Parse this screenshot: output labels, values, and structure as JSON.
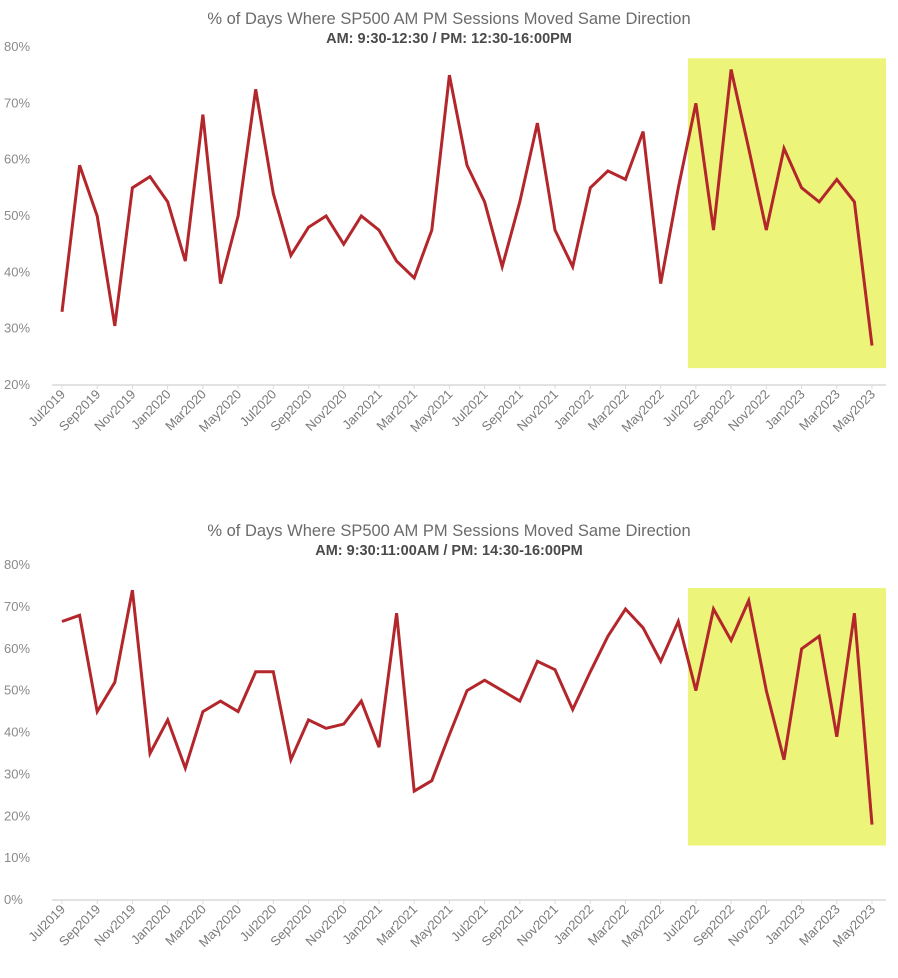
{
  "colors": {
    "line": "#b3262b",
    "highlight": "#ecf57a",
    "axis": "#d9d9d9"
  },
  "chart_data": [
    {
      "type": "line",
      "title": "% of Days Where SP500 AM PM Sessions Moved Same Direction",
      "subtitle": "AM: 9:30-12:30 / PM: 12:30-16:00PM",
      "xlabel": "",
      "ylabel": "",
      "ylim": [
        20,
        80
      ],
      "yticks": [
        20,
        30,
        40,
        50,
        60,
        70,
        80
      ],
      "ytick_labels": [
        "20%",
        "30%",
        "40%",
        "50%",
        "60%",
        "70%",
        "80%"
      ],
      "grid": false,
      "x": [
        "Jul2019",
        "Aug2019",
        "Sep2019",
        "Oct2019",
        "Nov2019",
        "Dec2019",
        "Jan2020",
        "Feb2020",
        "Mar2020",
        "Apr2020",
        "May2020",
        "Jun2020",
        "Jul2020",
        "Aug2020",
        "Sep2020",
        "Oct2020",
        "Nov2020",
        "Dec2020",
        "Jan2021",
        "Feb2021",
        "Mar2021",
        "Apr2021",
        "May2021",
        "Jun2021",
        "Jul2021",
        "Aug2021",
        "Sep2021",
        "Oct2021",
        "Nov2021",
        "Dec2021",
        "Jan2022",
        "Feb2022",
        "Mar2022",
        "Apr2022",
        "May2022",
        "Jun2022",
        "Jul2022",
        "Aug2022",
        "Sep2022",
        "Oct2022",
        "Nov2022",
        "Dec2022",
        "Jan2023",
        "Feb2023",
        "Mar2023",
        "Apr2023",
        "May2023"
      ],
      "xtick_labels": [
        "Jul2019",
        "Sep2019",
        "Nov2019",
        "Jan2020",
        "Mar2020",
        "May2020",
        "Jul2020",
        "Sep2020",
        "Nov2020",
        "Jan2021",
        "Mar2021",
        "May2021",
        "Jul2021",
        "Sep2021",
        "Nov2021",
        "Jan2022",
        "Mar2022",
        "May2022",
        "Jul2022",
        "Sep2022",
        "Nov2022",
        "Jan2023",
        "Mar2023",
        "May2023"
      ],
      "series": [
        {
          "name": "% same direction",
          "values": [
            33,
            59,
            50,
            30.5,
            55,
            57,
            52.5,
            42,
            68,
            38,
            50,
            72.5,
            54,
            43,
            48,
            50,
            45,
            50,
            47.5,
            42,
            39,
            47.5,
            75,
            59,
            52.5,
            41,
            52.5,
            66.5,
            47.5,
            41,
            55,
            58,
            56.5,
            65,
            38,
            55,
            70,
            47.5,
            76,
            62,
            47.5,
            62,
            55,
            52.5,
            56.5,
            52.5,
            27
          ]
        }
      ],
      "highlight": {
        "from": "Jul2022",
        "to": "May2023",
        "ymin": 23,
        "ymax": 78
      }
    },
    {
      "type": "line",
      "title": "% of Days Where SP500 AM PM Sessions Moved Same Direction",
      "subtitle": "AM: 9:30:11:00AM / PM: 14:30-16:00PM",
      "xlabel": "",
      "ylabel": "",
      "ylim": [
        0,
        80
      ],
      "yticks": [
        0,
        10,
        20,
        30,
        40,
        50,
        60,
        70,
        80
      ],
      "ytick_labels": [
        "0%",
        "10%",
        "20%",
        "30%",
        "40%",
        "50%",
        "60%",
        "70%",
        "80%"
      ],
      "grid": false,
      "x": [
        "Jul2019",
        "Aug2019",
        "Sep2019",
        "Oct2019",
        "Nov2019",
        "Dec2019",
        "Jan2020",
        "Feb2020",
        "Mar2020",
        "Apr2020",
        "May2020",
        "Jun2020",
        "Jul2020",
        "Aug2020",
        "Sep2020",
        "Oct2020",
        "Nov2020",
        "Dec2020",
        "Jan2021",
        "Feb2021",
        "Mar2021",
        "Apr2021",
        "May2021",
        "Jun2021",
        "Jul2021",
        "Aug2021",
        "Sep2021",
        "Oct2021",
        "Nov2021",
        "Dec2021",
        "Jan2022",
        "Feb2022",
        "Mar2022",
        "Apr2022",
        "May2022",
        "Jun2022",
        "Jul2022",
        "Aug2022",
        "Sep2022",
        "Oct2022",
        "Nov2022",
        "Dec2022",
        "Jan2023",
        "Feb2023",
        "Mar2023",
        "Apr2023",
        "May2023"
      ],
      "xtick_labels": [
        "Jul2019",
        "Sep2019",
        "Nov2019",
        "Jan2020",
        "Mar2020",
        "May2020",
        "Jul2020",
        "Sep2020",
        "Nov2020",
        "Jan2021",
        "Mar2021",
        "May2021",
        "Jul2021",
        "Sep2021",
        "Nov2021",
        "Jan2022",
        "Mar2022",
        "May2022",
        "Jul2022",
        "Sep2022",
        "Nov2022",
        "Jan2023",
        "Mar2023",
        "May2023"
      ],
      "series": [
        {
          "name": "% same direction",
          "values": [
            66.5,
            68,
            45,
            52,
            74,
            35,
            43,
            31.5,
            45,
            47.5,
            45,
            54.5,
            54.5,
            33.5,
            43,
            41,
            42,
            47.5,
            36.5,
            68.5,
            26,
            28.5,
            39.5,
            50,
            52.5,
            50,
            47.5,
            57,
            55,
            45.5,
            54.5,
            63,
            69.5,
            65,
            57,
            66.5,
            50,
            69.5,
            62,
            71.5,
            50,
            33.5,
            60,
            63,
            39,
            68.5,
            18
          ]
        }
      ],
      "highlight": {
        "from": "Jul2022",
        "to": "May2023",
        "ymin": 13,
        "ymax": 74.5
      }
    }
  ]
}
